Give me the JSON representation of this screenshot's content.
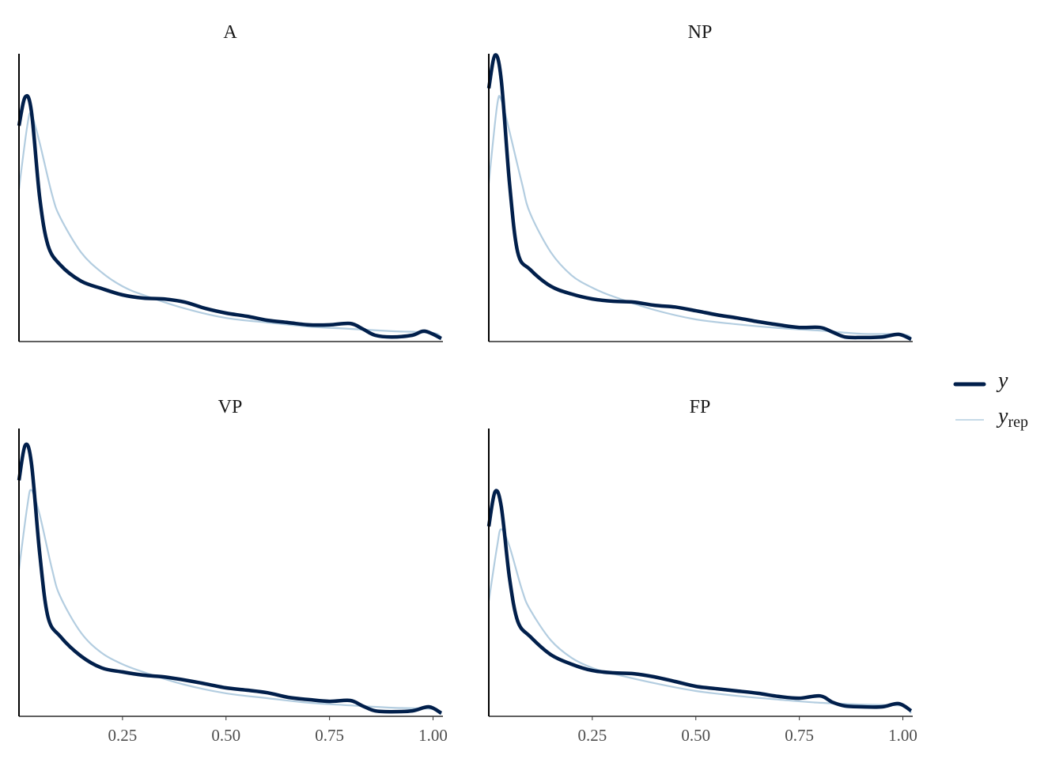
{
  "chart_data": {
    "type": "line",
    "kind": "density overlay (posterior predictive check)",
    "xlim": [
      0,
      1.02
    ],
    "ylim": [
      0,
      10
    ],
    "x_ticks": [
      "0.25",
      "0.50",
      "0.75",
      "1.00"
    ],
    "x_tick_values": [
      0.25,
      0.5,
      0.75,
      1.0
    ],
    "grid": false,
    "legend_position": "right",
    "legend": [
      {
        "key": "y",
        "label": "y",
        "sub": "",
        "color": "#011f4b"
      },
      {
        "key": "yrep",
        "label": "y",
        "sub": "rep",
        "color": "#b3cde0"
      }
    ],
    "panels": [
      {
        "title": "A",
        "y": {
          "x": [
            0,
            0.015,
            0.03,
            0.05,
            0.07,
            0.1,
            0.15,
            0.2,
            0.25,
            0.3,
            0.35,
            0.4,
            0.45,
            0.5,
            0.55,
            0.6,
            0.65,
            0.7,
            0.75,
            0.8,
            0.83,
            0.86,
            0.9,
            0.95,
            0.98,
            1.02
          ],
          "values": [
            7.5,
            8.5,
            8.0,
            5.0,
            3.35,
            2.66,
            2.1,
            1.84,
            1.62,
            1.51,
            1.48,
            1.37,
            1.15,
            0.99,
            0.88,
            0.74,
            0.66,
            0.58,
            0.58,
            0.63,
            0.44,
            0.22,
            0.16,
            0.22,
            0.36,
            0.11
          ]
        },
        "yrep": {
          "x": [
            0,
            0.02,
            0.03,
            0.05,
            0.08,
            0.1,
            0.15,
            0.2,
            0.25,
            0.3,
            0.4,
            0.5,
            0.6,
            0.7,
            0.8,
            0.9,
            1.0,
            1.02
          ],
          "values": [
            5.3,
            7.5,
            7.9,
            6.9,
            5.1,
            4.3,
            3.1,
            2.4,
            1.92,
            1.62,
            1.15,
            0.82,
            0.66,
            0.52,
            0.44,
            0.36,
            0.3,
            0.11
          ]
        }
      },
      {
        "title": "NP",
        "y": {
          "x": [
            0,
            0.015,
            0.03,
            0.05,
            0.07,
            0.1,
            0.15,
            0.2,
            0.25,
            0.3,
            0.35,
            0.4,
            0.45,
            0.5,
            0.55,
            0.6,
            0.65,
            0.7,
            0.75,
            0.8,
            0.83,
            0.86,
            0.9,
            0.95,
            0.99,
            1.02
          ],
          "values": [
            8.8,
            9.95,
            9.1,
            5.5,
            3.1,
            2.5,
            1.92,
            1.65,
            1.48,
            1.4,
            1.37,
            1.26,
            1.2,
            1.07,
            0.93,
            0.82,
            0.69,
            0.58,
            0.49,
            0.49,
            0.33,
            0.16,
            0.14,
            0.16,
            0.25,
            0.08
          ]
        },
        "yrep": {
          "x": [
            0,
            0.02,
            0.03,
            0.05,
            0.08,
            0.1,
            0.15,
            0.2,
            0.25,
            0.3,
            0.4,
            0.5,
            0.6,
            0.7,
            0.8,
            0.9,
            1.0,
            1.02
          ],
          "values": [
            5.5,
            8.2,
            8.4,
            7.3,
            5.5,
            4.45,
            3.1,
            2.3,
            1.87,
            1.57,
            1.1,
            0.77,
            0.6,
            0.47,
            0.38,
            0.27,
            0.25,
            0.11
          ]
        }
      },
      {
        "title": "VP",
        "y": {
          "x": [
            0,
            0.015,
            0.03,
            0.05,
            0.07,
            0.1,
            0.15,
            0.2,
            0.25,
            0.3,
            0.35,
            0.4,
            0.45,
            0.5,
            0.55,
            0.6,
            0.65,
            0.7,
            0.75,
            0.8,
            0.83,
            0.86,
            0.9,
            0.95,
            0.99,
            1.02
          ],
          "values": [
            8.2,
            9.42,
            8.8,
            5.66,
            3.46,
            2.77,
            2.09,
            1.68,
            1.54,
            1.43,
            1.37,
            1.26,
            1.13,
            0.99,
            0.91,
            0.82,
            0.66,
            0.58,
            0.52,
            0.55,
            0.36,
            0.19,
            0.16,
            0.19,
            0.33,
            0.11
          ]
        },
        "yrep": {
          "x": [
            0,
            0.02,
            0.03,
            0.05,
            0.08,
            0.1,
            0.15,
            0.2,
            0.25,
            0.3,
            0.4,
            0.5,
            0.6,
            0.7,
            0.8,
            0.9,
            1.0,
            1.02
          ],
          "values": [
            5.1,
            7.3,
            7.86,
            7.0,
            5.1,
            4.15,
            2.9,
            2.2,
            1.81,
            1.54,
            1.1,
            0.8,
            0.63,
            0.47,
            0.38,
            0.3,
            0.25,
            0.08
          ]
        }
      },
      {
        "title": "FP",
        "y": {
          "x": [
            0,
            0.015,
            0.03,
            0.05,
            0.07,
            0.1,
            0.15,
            0.2,
            0.25,
            0.3,
            0.35,
            0.4,
            0.45,
            0.5,
            0.55,
            0.6,
            0.65,
            0.7,
            0.75,
            0.8,
            0.83,
            0.86,
            0.9,
            0.95,
            0.99,
            1.02
          ],
          "values": [
            6.6,
            7.8,
            7.3,
            4.8,
            3.3,
            2.77,
            2.14,
            1.81,
            1.59,
            1.51,
            1.48,
            1.37,
            1.21,
            1.04,
            0.96,
            0.88,
            0.8,
            0.69,
            0.63,
            0.71,
            0.49,
            0.36,
            0.33,
            0.33,
            0.44,
            0.19
          ]
        },
        "yrep": {
          "x": [
            0,
            0.02,
            0.03,
            0.05,
            0.08,
            0.1,
            0.15,
            0.2,
            0.25,
            0.3,
            0.4,
            0.5,
            0.6,
            0.7,
            0.8,
            0.9,
            1.0,
            1.02
          ],
          "values": [
            4.0,
            5.9,
            6.5,
            5.9,
            4.4,
            3.7,
            2.64,
            2.03,
            1.68,
            1.48,
            1.15,
            0.88,
            0.71,
            0.58,
            0.47,
            0.41,
            0.36,
            0.11
          ]
        }
      }
    ]
  }
}
